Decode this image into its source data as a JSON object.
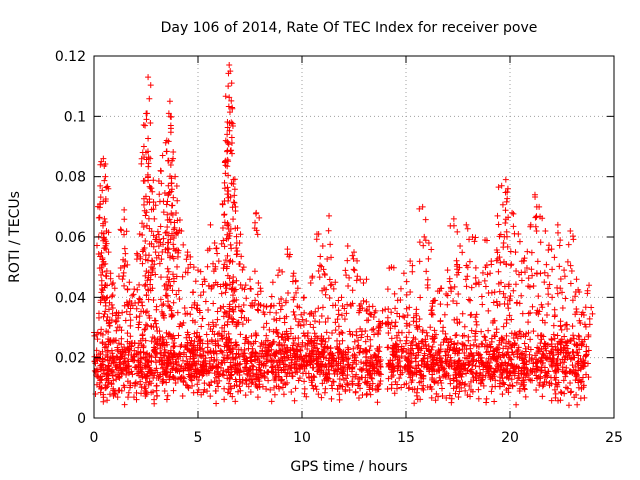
{
  "chart_data": {
    "type": "scatter",
    "title": "Day 106 of 2014, Rate Of TEC Index for receiver pove",
    "xlabel": "GPS time / hours",
    "ylabel": "ROTI / TECUs",
    "xlim": [
      0,
      25
    ],
    "ylim": [
      0,
      0.12
    ],
    "x_ticks": [
      0,
      5,
      10,
      15,
      20,
      25
    ],
    "x_tick_labels": [
      "0",
      "5",
      "10",
      "15",
      "20",
      "25"
    ],
    "y_ticks": [
      0,
      0.02,
      0.04,
      0.06,
      0.08,
      0.1,
      0.12
    ],
    "y_tick_labels": [
      "0",
      "0.02",
      "0.04",
      "0.06",
      "0.08",
      "0.1",
      "0.12"
    ],
    "grid": true,
    "marker": "+",
    "color": "#ff0000",
    "series": [
      {
        "name": "ROTI",
        "points": [
          [
            0.3,
            0.071
          ],
          [
            0.35,
            0.085
          ],
          [
            0.45,
            0.086
          ],
          [
            0.55,
            0.08
          ],
          [
            0.5,
            0.066
          ],
          [
            0.6,
            0.062
          ],
          [
            0.7,
            0.055
          ],
          [
            0.8,
            0.048
          ],
          [
            1.0,
            0.043
          ],
          [
            1.2,
            0.047
          ],
          [
            1.45,
            0.069
          ],
          [
            1.5,
            0.052
          ],
          [
            1.7,
            0.045
          ],
          [
            1.9,
            0.041
          ],
          [
            2.1,
            0.054
          ],
          [
            2.2,
            0.061
          ],
          [
            2.4,
            0.09
          ],
          [
            2.5,
            0.088
          ],
          [
            2.55,
            0.101
          ],
          [
            2.6,
            0.113
          ],
          [
            2.7,
            0.086
          ],
          [
            2.8,
            0.075
          ],
          [
            2.9,
            0.066
          ],
          [
            3.0,
            0.06
          ],
          [
            3.2,
            0.082
          ],
          [
            3.3,
            0.087
          ],
          [
            3.5,
            0.092
          ],
          [
            3.6,
            0.101
          ],
          [
            3.65,
            0.105
          ],
          [
            3.7,
            0.096
          ],
          [
            3.8,
            0.086
          ],
          [
            3.9,
            0.08
          ],
          [
            4.0,
            0.072
          ],
          [
            4.2,
            0.062
          ],
          [
            4.5,
            0.055
          ],
          [
            4.8,
            0.05
          ],
          [
            5.0,
            0.049
          ],
          [
            5.3,
            0.046
          ],
          [
            5.6,
            0.064
          ],
          [
            5.8,
            0.058
          ],
          [
            6.0,
            0.052
          ],
          [
            6.2,
            0.063
          ],
          [
            6.3,
            0.085
          ],
          [
            6.4,
            0.094
          ],
          [
            6.45,
            0.11
          ],
          [
            6.5,
            0.117
          ],
          [
            6.55,
            0.115
          ],
          [
            6.6,
            0.098
          ],
          [
            6.7,
            0.079
          ],
          [
            6.8,
            0.07
          ],
          [
            6.9,
            0.063
          ],
          [
            7.0,
            0.058
          ],
          [
            7.2,
            0.05
          ],
          [
            7.5,
            0.046
          ],
          [
            7.8,
            0.068
          ],
          [
            8.0,
            0.043
          ],
          [
            8.3,
            0.037
          ],
          [
            8.6,
            0.045
          ],
          [
            8.9,
            0.049
          ],
          [
            9.3,
            0.056
          ],
          [
            9.6,
            0.048
          ],
          [
            9.8,
            0.043
          ],
          [
            10.1,
            0.04
          ],
          [
            10.5,
            0.047
          ],
          [
            10.8,
            0.061
          ],
          [
            11.0,
            0.057
          ],
          [
            11.3,
            0.067
          ],
          [
            11.6,
            0.045
          ],
          [
            11.9,
            0.04
          ],
          [
            12.2,
            0.057
          ],
          [
            12.5,
            0.055
          ],
          [
            12.8,
            0.046
          ],
          [
            13.1,
            0.046
          ],
          [
            13.4,
            0.037
          ],
          [
            13.7,
            0.032
          ],
          [
            14.0,
            0.036
          ],
          [
            14.3,
            0.05
          ],
          [
            14.6,
            0.039
          ],
          [
            14.9,
            0.048
          ],
          [
            15.2,
            0.052
          ],
          [
            15.5,
            0.036
          ],
          [
            15.8,
            0.07
          ],
          [
            16.1,
            0.058
          ],
          [
            16.4,
            0.039
          ],
          [
            16.7,
            0.043
          ],
          [
            17.0,
            0.049
          ],
          [
            17.3,
            0.066
          ],
          [
            17.6,
            0.057
          ],
          [
            17.9,
            0.064
          ],
          [
            18.2,
            0.06
          ],
          [
            18.5,
            0.045
          ],
          [
            18.8,
            0.059
          ],
          [
            19.1,
            0.052
          ],
          [
            19.4,
            0.067
          ],
          [
            19.6,
            0.077
          ],
          [
            19.8,
            0.079
          ],
          [
            19.9,
            0.076
          ],
          [
            20.1,
            0.068
          ],
          [
            20.4,
            0.061
          ],
          [
            20.7,
            0.053
          ],
          [
            21.0,
            0.064
          ],
          [
            21.2,
            0.074
          ],
          [
            21.4,
            0.07
          ],
          [
            21.7,
            0.062
          ],
          [
            22.0,
            0.056
          ],
          [
            22.3,
            0.064
          ],
          [
            22.6,
            0.049
          ],
          [
            22.9,
            0.062
          ],
          [
            23.2,
            0.046
          ],
          [
            23.5,
            0.035
          ],
          [
            23.8,
            0.044
          ]
        ]
      }
    ],
    "background_band": {
      "segments": [
        [
          0,
          13.8
        ],
        [
          14.1,
          23.8
        ]
      ],
      "y_low": 0.004,
      "y_high": 0.03,
      "count": 2600
    }
  }
}
